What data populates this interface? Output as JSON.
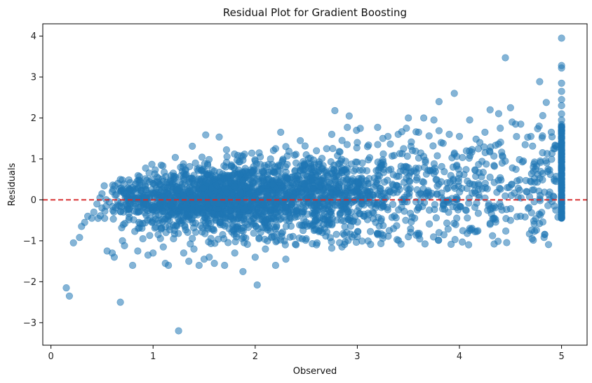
{
  "chart_data": {
    "type": "scatter",
    "title": "Residual Plot for Gradient Boosting",
    "xlabel": "Observed",
    "ylabel": "Residuals",
    "xlim": [
      -0.08,
      5.25
    ],
    "ylim": [
      -3.55,
      4.3
    ],
    "xticks": [
      0,
      1,
      2,
      3,
      4,
      5
    ],
    "yticks": [
      -3,
      -2,
      -1,
      0,
      1,
      2,
      3,
      4
    ],
    "grid": false,
    "point_color": "#1f77b4",
    "point_alpha": 0.55,
    "reference_line": {
      "y": 0,
      "color": "#d62728",
      "style": "dashed"
    },
    "points": [
      [
        0.15,
        -2.15
      ],
      [
        0.18,
        -2.35
      ],
      [
        0.22,
        -1.05
      ],
      [
        0.28,
        -0.92
      ],
      [
        0.3,
        -0.65
      ],
      [
        0.33,
        -0.55
      ],
      [
        0.36,
        -0.4
      ],
      [
        0.4,
        -0.45
      ],
      [
        0.42,
        -0.3
      ],
      [
        0.45,
        -0.1
      ],
      [
        0.48,
        0.05
      ],
      [
        0.5,
        -0.2
      ],
      [
        0.55,
        -1.25
      ],
      [
        0.6,
        -1.3
      ],
      [
        0.62,
        -1.4
      ],
      [
        0.68,
        -2.5
      ],
      [
        0.7,
        -1.0
      ],
      [
        0.72,
        -1.12
      ],
      [
        0.8,
        -1.6
      ],
      [
        0.85,
        -1.25
      ],
      [
        0.9,
        -0.95
      ],
      [
        0.95,
        -1.35
      ],
      [
        1.0,
        -1.3
      ],
      [
        1.05,
        -0.85
      ],
      [
        1.1,
        -1.15
      ],
      [
        1.12,
        -1.55
      ],
      [
        1.15,
        -1.6
      ],
      [
        1.2,
        -0.95
      ],
      [
        1.25,
        -3.2
      ],
      [
        1.3,
        -1.3
      ],
      [
        1.35,
        -1.5
      ],
      [
        1.4,
        -1.2
      ],
      [
        1.45,
        -1.6
      ],
      [
        1.5,
        -1.45
      ],
      [
        1.55,
        -1.4
      ],
      [
        1.6,
        -1.55
      ],
      [
        1.7,
        -1.6
      ],
      [
        1.8,
        -1.3
      ],
      [
        1.88,
        -1.75
      ],
      [
        2.0,
        -1.4
      ],
      [
        2.02,
        -2.08
      ],
      [
        2.1,
        -1.2
      ],
      [
        2.2,
        -1.6
      ],
      [
        2.3,
        -1.45
      ],
      [
        2.4,
        -1.1
      ],
      [
        2.5,
        -0.95
      ],
      [
        2.6,
        -1.1
      ],
      [
        2.75,
        -1.18
      ],
      [
        2.85,
        -1.15
      ],
      [
        3.0,
        -0.9
      ],
      [
        3.2,
        -0.85
      ],
      [
        3.5,
        -0.9
      ],
      [
        3.8,
        -0.8
      ],
      [
        4.1,
        -0.75
      ],
      [
        4.3,
        -0.6
      ],
      [
        4.5,
        -0.5
      ],
      [
        0.5,
        0.15
      ],
      [
        0.6,
        0.2
      ],
      [
        0.7,
        0.25
      ],
      [
        0.8,
        0.3
      ],
      [
        0.9,
        0.35
      ],
      [
        1.0,
        0.4
      ],
      [
        1.1,
        0.45
      ],
      [
        1.2,
        0.5
      ],
      [
        1.3,
        0.55
      ],
      [
        1.4,
        0.6
      ],
      [
        1.5,
        0.62
      ],
      [
        1.6,
        0.7
      ],
      [
        1.7,
        0.6
      ],
      [
        1.8,
        0.75
      ],
      [
        1.9,
        0.7
      ],
      [
        2.0,
        0.95
      ],
      [
        2.05,
        1.05
      ],
      [
        2.15,
        1.0
      ],
      [
        2.2,
        1.25
      ],
      [
        2.25,
        1.65
      ],
      [
        2.3,
        1.3
      ],
      [
        2.4,
        0.9
      ],
      [
        2.5,
        1.1
      ],
      [
        2.6,
        1.2
      ],
      [
        2.7,
        1.25
      ],
      [
        2.75,
        1.6
      ],
      [
        2.78,
        2.18
      ],
      [
        2.85,
        1.45
      ],
      [
        2.9,
        1.35
      ],
      [
        2.92,
        2.05
      ],
      [
        3.0,
        1.4
      ],
      [
        3.1,
        1.3
      ],
      [
        3.2,
        1.35
      ],
      [
        3.25,
        1.5
      ],
      [
        3.3,
        1.55
      ],
      [
        3.4,
        1.6
      ],
      [
        3.5,
        2.0
      ],
      [
        3.6,
        1.65
      ],
      [
        3.65,
        2.0
      ],
      [
        3.75,
        1.95
      ],
      [
        3.8,
        2.4
      ],
      [
        3.9,
        1.6
      ],
      [
        3.95,
        2.6
      ],
      [
        4.0,
        1.55
      ],
      [
        4.1,
        1.95
      ],
      [
        4.2,
        1.4
      ],
      [
        4.25,
        1.65
      ],
      [
        4.3,
        2.2
      ],
      [
        4.4,
        1.75
      ],
      [
        4.45,
        3.47
      ],
      [
        4.5,
        2.25
      ],
      [
        4.55,
        1.85
      ],
      [
        4.6,
        1.85
      ],
      [
        4.7,
        1.55
      ],
      [
        4.78,
        1.8
      ],
      [
        4.85,
        2.38
      ],
      [
        4.9,
        1.65
      ],
      [
        4.95,
        1.3
      ],
      [
        5.0,
        3.95
      ],
      [
        5.0,
        3.28
      ],
      [
        5.0,
        3.22
      ],
      [
        5.0,
        2.85
      ],
      [
        5.0,
        2.65
      ],
      [
        5.0,
        2.45
      ],
      [
        5.0,
        2.3
      ],
      [
        5.0,
        2.1
      ],
      [
        5.0,
        1.95
      ],
      [
        5.0,
        1.8
      ],
      [
        5.0,
        1.6
      ],
      [
        5.0,
        1.4
      ],
      [
        5.0,
        1.2
      ],
      [
        5.0,
        1.0
      ],
      [
        5.0,
        0.8
      ],
      [
        5.0,
        0.6
      ],
      [
        5.0,
        0.4
      ],
      [
        5.0,
        0.2
      ],
      [
        5.0,
        0.0
      ],
      [
        5.0,
        -0.2
      ],
      [
        5.0,
        -0.45
      ]
    ]
  }
}
